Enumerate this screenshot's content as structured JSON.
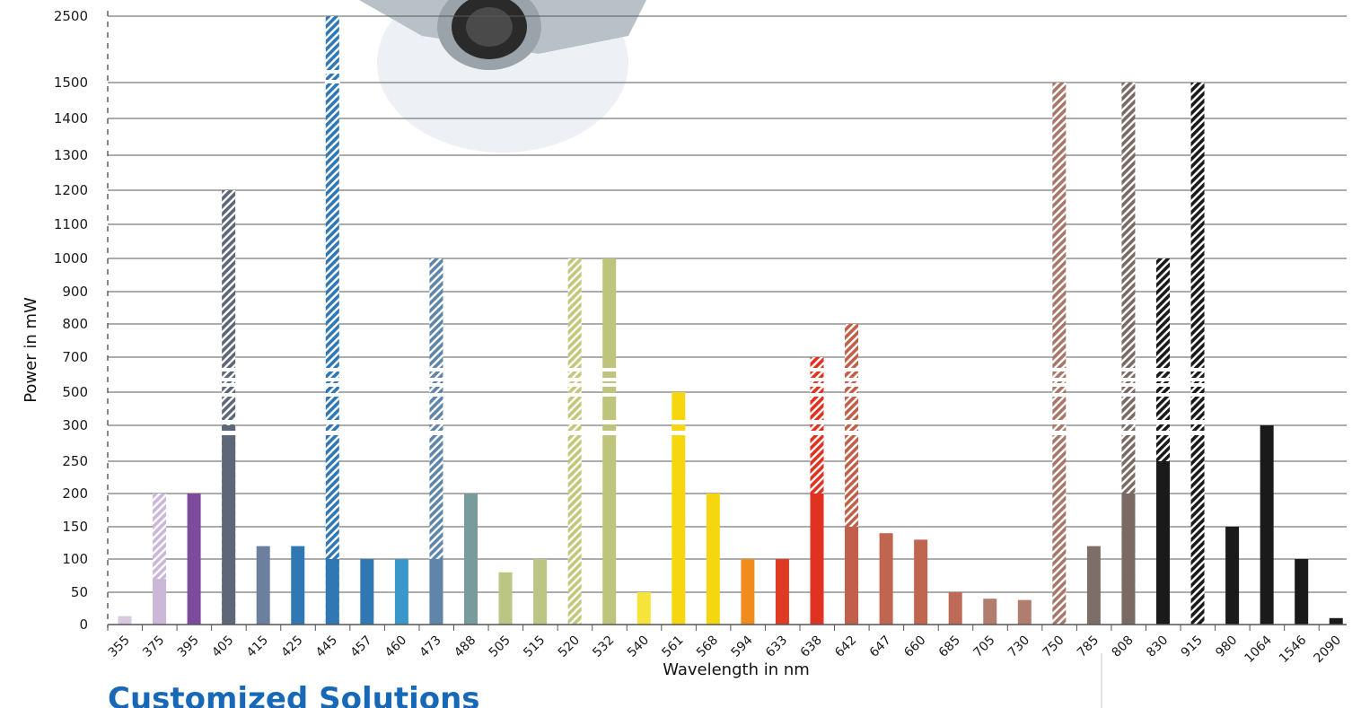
{
  "chart_data": {
    "type": "bar",
    "xlabel": "Wavelength in nm",
    "ylabel": "Power in mW",
    "y_ticks": [
      "0",
      "50",
      "100",
      "150",
      "200",
      "250",
      "300",
      "500",
      "700",
      "800",
      "900",
      "1000",
      "1100",
      "1200",
      "1300",
      "1400",
      "1500",
      "2500"
    ],
    "axis_breaks": "broken y axis between 300 and 500, between 500 and 700, and between 1500 and 2500",
    "grid": true,
    "legend": "none",
    "note": "hatched segment = higher power available",
    "categories": [
      "355",
      "375",
      "395",
      "405",
      "415",
      "425",
      "445",
      "457",
      "460",
      "473",
      "488",
      "505",
      "515",
      "520",
      "532",
      "540",
      "561",
      "568",
      "594",
      "633",
      "638",
      "642",
      "647",
      "660",
      "685",
      "705",
      "730",
      "750",
      "785",
      "808",
      "830",
      "915",
      "980",
      "1064",
      "1546",
      "2090"
    ],
    "bars": [
      {
        "nm": "355",
        "solid": 13,
        "hatched": null,
        "color": "#d8c9df"
      },
      {
        "nm": "375",
        "solid": 70,
        "hatched": 200,
        "color": "#cbb8d9"
      },
      {
        "nm": "395",
        "solid": 200,
        "hatched": null,
        "color": "#7c4b9b"
      },
      {
        "nm": "405",
        "solid": 300,
        "hatched": 1200,
        "color": "#5e6777"
      },
      {
        "nm": "415",
        "solid": 120,
        "hatched": null,
        "color": "#6c7f9f"
      },
      {
        "nm": "425",
        "solid": 120,
        "hatched": null,
        "color": "#2f78b4"
      },
      {
        "nm": "445",
        "solid": 100,
        "hatched": 2500,
        "color": "#2f78b4"
      },
      {
        "nm": "457",
        "solid": 100,
        "hatched": null,
        "color": "#2f78b4"
      },
      {
        "nm": "460",
        "solid": 100,
        "hatched": null,
        "color": "#3a97c9"
      },
      {
        "nm": "473",
        "solid": 100,
        "hatched": 1000,
        "color": "#5f86a8"
      },
      {
        "nm": "488",
        "solid": 200,
        "hatched": null,
        "color": "#789c9b"
      },
      {
        "nm": "505",
        "solid": 80,
        "hatched": null,
        "color": "#bcc584"
      },
      {
        "nm": "515",
        "solid": 100,
        "hatched": null,
        "color": "#bcc584"
      },
      {
        "nm": "520",
        "solid": null,
        "hatched": 1000,
        "color": "#c3c77a"
      },
      {
        "nm": "532",
        "solid": 1000,
        "hatched": null,
        "color": "#bfc47c"
      },
      {
        "nm": "540",
        "solid": 50,
        "hatched": null,
        "color": "#f7e43a"
      },
      {
        "nm": "561",
        "solid": 500,
        "hatched": null,
        "color": "#f6d70f"
      },
      {
        "nm": "568",
        "solid": 200,
        "hatched": null,
        "color": "#f6d70f"
      },
      {
        "nm": "594",
        "solid": 100,
        "hatched": null,
        "color": "#f08c1e"
      },
      {
        "nm": "633",
        "solid": 100,
        "hatched": null,
        "color": "#e03a24"
      },
      {
        "nm": "638",
        "solid": 200,
        "hatched": 700,
        "color": "#e03220"
      },
      {
        "nm": "642",
        "solid": 150,
        "hatched": 800,
        "color": "#c0604a"
      },
      {
        "nm": "647",
        "solid": 140,
        "hatched": null,
        "color": "#bf6550"
      },
      {
        "nm": "660",
        "solid": 130,
        "hatched": null,
        "color": "#bf6550"
      },
      {
        "nm": "685",
        "solid": 50,
        "hatched": null,
        "color": "#bd6b57"
      },
      {
        "nm": "705",
        "solid": 40,
        "hatched": null,
        "color": "#b07d6e"
      },
      {
        "nm": "730",
        "solid": 38,
        "hatched": null,
        "color": "#b07d6e"
      },
      {
        "nm": "750",
        "solid": null,
        "hatched": 1500,
        "color": "#a7776a"
      },
      {
        "nm": "785",
        "solid": 120,
        "hatched": null,
        "color": "#7e6e68"
      },
      {
        "nm": "808",
        "solid": 200,
        "hatched": 1500,
        "color": "#7b6a64"
      },
      {
        "nm": "830",
        "solid": 250,
        "hatched": 1000,
        "color": "#1a1a1a"
      },
      {
        "nm": "915",
        "solid": null,
        "hatched": 1500,
        "color": "#1a1a1a"
      },
      {
        "nm": "980",
        "solid": 150,
        "hatched": null,
        "color": "#1a1a1a"
      },
      {
        "nm": "1064",
        "solid": 300,
        "hatched": null,
        "color": "#1a1a1a"
      },
      {
        "nm": "1546",
        "solid": 100,
        "hatched": null,
        "color": "#1a1a1a"
      },
      {
        "nm": "2090",
        "solid": 10,
        "hatched": null,
        "color": "#1a1a1a"
      }
    ]
  },
  "page": {
    "section_heading": "Customized Solutions"
  }
}
